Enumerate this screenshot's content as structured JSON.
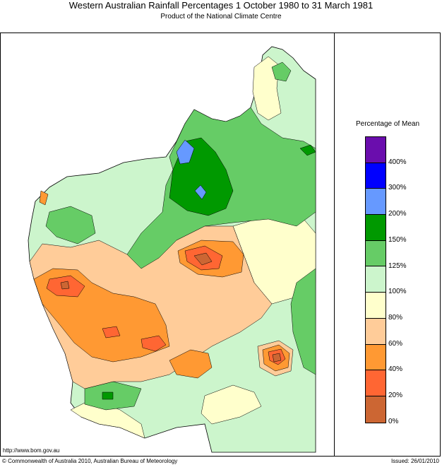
{
  "title": "Western Australian Rainfall Percentages 1 October 1980 to 31 March 1981",
  "subtitle": "Product of the National Climate Centre",
  "legend": {
    "title": "Percentage of Mean",
    "bands": [
      {
        "color": "#6a0dad"
      },
      {
        "color": "#0000ff"
      },
      {
        "color": "#6699ff"
      },
      {
        "color": "#009900"
      },
      {
        "color": "#66cc66"
      },
      {
        "color": "#ccf5cc"
      },
      {
        "color": "#ffffcc"
      },
      {
        "color": "#ffcc99"
      },
      {
        "color": "#ff9933"
      },
      {
        "color": "#ff6633"
      },
      {
        "color": "#cc6633"
      }
    ],
    "ticks": [
      "400%",
      "300%",
      "200%",
      "150%",
      "125%",
      "100%",
      "80%",
      "60%",
      "40%",
      "20%",
      "0%"
    ]
  },
  "footer": {
    "url": "http://www.bom.gov.au",
    "copyright": "© Commonwealth of Australia 2010, Australian Bureau of Meteorology",
    "issued": "Issued: 26/01/2010"
  }
}
